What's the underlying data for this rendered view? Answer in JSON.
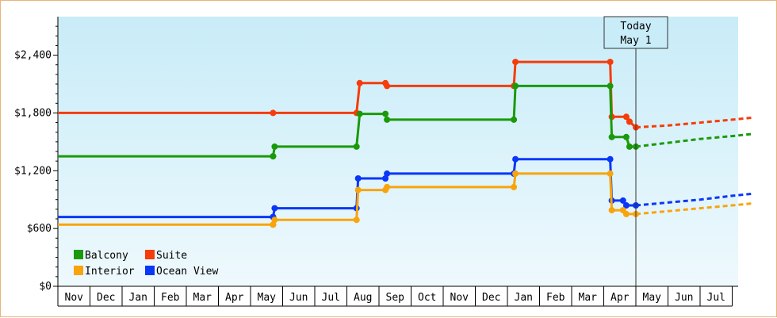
{
  "chart_data": {
    "type": "line",
    "step": true,
    "x_unit": "month",
    "x_start": "2015-11",
    "months": [
      "Nov",
      "Dec",
      "Jan",
      "Feb",
      "Mar",
      "Apr",
      "May",
      "Jun",
      "Jul",
      "Aug",
      "Sep",
      "Oct",
      "Nov",
      "Dec",
      "Jan",
      "Feb",
      "Mar",
      "Apr",
      "May",
      "Jun",
      "Jul"
    ],
    "ylim": [
      0,
      2800
    ],
    "yticks": [
      0,
      600,
      1200,
      1800,
      2400
    ],
    "ytick_labels": [
      "$0",
      "$600",
      "$1,200",
      "$1,800",
      "$2,400"
    ],
    "grid": false,
    "background": [
      "#c8ecf8",
      "#eef9fd"
    ],
    "today": {
      "label_line1": "Today",
      "label_line2": "May 1",
      "x": 18.0
    },
    "legend": {
      "placement": "bottom-left",
      "items": [
        {
          "label": "Balcony",
          "color": "#1a9a0a"
        },
        {
          "label": "Suite",
          "color": "#f53c0a"
        },
        {
          "label": "Interior",
          "color": "#f8a40c"
        },
        {
          "label": "Ocean View",
          "color": "#0a36f8"
        }
      ]
    },
    "series": [
      {
        "name": "Suite",
        "color": "#f53c0a",
        "points": [
          [
            0,
            1800
          ],
          [
            6.7,
            1800
          ],
          [
            9.3,
            1800
          ],
          [
            9.4,
            2110
          ],
          [
            10.2,
            2110
          ],
          [
            10.25,
            2080
          ],
          [
            14.2,
            2080
          ],
          [
            14.25,
            2330
          ],
          [
            17.2,
            2330
          ],
          [
            17.25,
            1760
          ],
          [
            17.7,
            1760
          ],
          [
            17.8,
            1710
          ],
          [
            18.0,
            1650
          ]
        ],
        "forecast": [
          [
            18.0,
            1650
          ],
          [
            19.0,
            1670
          ],
          [
            20.0,
            1700
          ],
          [
            21.0,
            1730
          ],
          [
            21.6,
            1750
          ]
        ]
      },
      {
        "name": "Balcony",
        "color": "#1a9a0a",
        "points": [
          [
            0,
            1350
          ],
          [
            6.7,
            1350
          ],
          [
            6.75,
            1450
          ],
          [
            9.3,
            1450
          ],
          [
            9.4,
            1790
          ],
          [
            10.2,
            1790
          ],
          [
            10.25,
            1730
          ],
          [
            14.2,
            1730
          ],
          [
            14.25,
            2080
          ],
          [
            17.2,
            2080
          ],
          [
            17.25,
            1550
          ],
          [
            17.7,
            1550
          ],
          [
            17.8,
            1450
          ],
          [
            18.0,
            1450
          ]
        ],
        "forecast": [
          [
            18.0,
            1450
          ],
          [
            19.0,
            1490
          ],
          [
            20.0,
            1530
          ],
          [
            21.0,
            1560
          ],
          [
            21.6,
            1580
          ]
        ]
      },
      {
        "name": "Ocean View",
        "color": "#0a36f8",
        "points": [
          [
            0,
            720
          ],
          [
            6.7,
            720
          ],
          [
            6.75,
            810
          ],
          [
            9.3,
            810
          ],
          [
            9.35,
            1120
          ],
          [
            10.2,
            1120
          ],
          [
            10.25,
            1170
          ],
          [
            14.2,
            1170
          ],
          [
            14.25,
            1320
          ],
          [
            17.2,
            1320
          ],
          [
            17.25,
            890
          ],
          [
            17.6,
            890
          ],
          [
            17.7,
            840
          ],
          [
            18.0,
            840
          ]
        ],
        "forecast": [
          [
            18.0,
            840
          ],
          [
            19.0,
            870
          ],
          [
            20.0,
            900
          ],
          [
            21.0,
            940
          ],
          [
            21.6,
            960
          ]
        ]
      },
      {
        "name": "Interior",
        "color": "#f8a40c",
        "points": [
          [
            0,
            640
          ],
          [
            6.7,
            640
          ],
          [
            6.75,
            690
          ],
          [
            9.3,
            690
          ],
          [
            9.35,
            1000
          ],
          [
            10.2,
            1000
          ],
          [
            10.25,
            1030
          ],
          [
            14.2,
            1030
          ],
          [
            14.25,
            1170
          ],
          [
            17.2,
            1170
          ],
          [
            17.25,
            790
          ],
          [
            17.6,
            790
          ],
          [
            17.7,
            750
          ],
          [
            18.0,
            750
          ]
        ],
        "forecast": [
          [
            18.0,
            750
          ],
          [
            19.0,
            780
          ],
          [
            20.0,
            810
          ],
          [
            21.0,
            840
          ],
          [
            21.6,
            860
          ]
        ]
      }
    ]
  }
}
